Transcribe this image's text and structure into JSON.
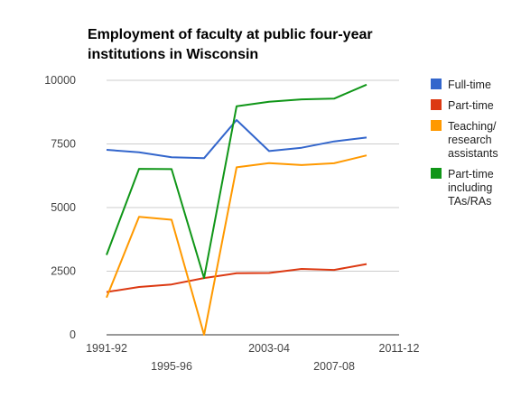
{
  "chart_data": {
    "type": "line",
    "title": "Employment of faculty at public four-year institutions in Wisconsin",
    "xlabel": "",
    "ylabel": "",
    "categories": [
      "1991-92",
      "",
      "1995-96",
      "",
      "",
      "2003-04",
      "",
      "2007-08",
      "",
      "2011-12"
    ],
    "x_tick_labels_row1": [
      {
        "index": 0,
        "label": "1991-92"
      },
      {
        "index": 5,
        "label": "2003-04"
      },
      {
        "index": 9,
        "label": "2011-12"
      }
    ],
    "x_tick_labels_row2": [
      {
        "index": 2,
        "label": "1995-96"
      },
      {
        "index": 7,
        "label": "2007-08"
      }
    ],
    "y_ticks": [
      "0",
      "2500",
      "5000",
      "7500",
      "10000"
    ],
    "ylim": [
      0,
      10000
    ],
    "grid": true,
    "legend_position": "right",
    "series": [
      {
        "name": "Full-time",
        "color": "#3366cc",
        "values": [
          7270,
          7170,
          6980,
          6940,
          8440,
          7220,
          7350,
          7600,
          7750,
          null
        ]
      },
      {
        "name": "Part-time",
        "color": "#dc3912",
        "values": [
          1680,
          1880,
          1980,
          2230,
          2420,
          2430,
          2590,
          2550,
          2780,
          null
        ]
      },
      {
        "name": "Teaching/ research assistants",
        "color": "#ff9900",
        "values": [
          1460,
          4640,
          4520,
          0,
          6580,
          6750,
          6670,
          6740,
          7050,
          null
        ]
      },
      {
        "name": "Part-time including TAs/RAs",
        "color": "#109618",
        "values": [
          3140,
          6520,
          6510,
          2230,
          8980,
          9160,
          9250,
          9280,
          9830,
          null
        ]
      }
    ],
    "legend": [
      {
        "lines": [
          "Full-time"
        ],
        "color": "#3366cc"
      },
      {
        "lines": [
          "Part-time"
        ],
        "color": "#dc3912"
      },
      {
        "lines": [
          "Teaching/",
          "research",
          "assistants"
        ],
        "color": "#ff9900"
      },
      {
        "lines": [
          "Part-time",
          "including",
          "TAs/RAs"
        ],
        "color": "#109618"
      }
    ]
  }
}
